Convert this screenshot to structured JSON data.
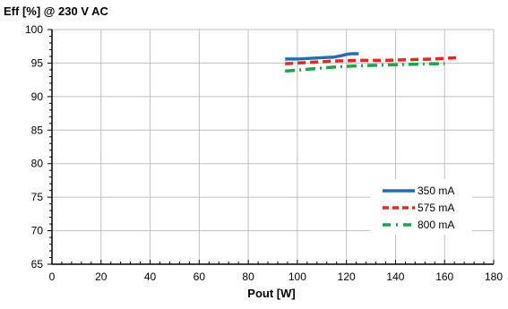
{
  "chart_data": {
    "type": "line",
    "title": "Eff [%]  @ 230 V AC",
    "xlabel": "Pout [W]",
    "ylabel": "",
    "xlim": [
      0,
      180
    ],
    "ylim": [
      65,
      100
    ],
    "xticks": [
      0,
      20,
      40,
      60,
      80,
      100,
      120,
      140,
      160,
      180
    ],
    "yticks": [
      65,
      70,
      75,
      80,
      85,
      90,
      95,
      100
    ],
    "grid": true,
    "legend_position": "bottom-right",
    "series": [
      {
        "name": "350 mA",
        "color": "#1F6FB5",
        "style": "solid",
        "x": [
          95,
          100,
          105,
          110,
          115,
          118,
          120,
          122,
          125
        ],
        "y": [
          95.6,
          95.6,
          95.7,
          95.8,
          95.9,
          96.1,
          96.3,
          96.4,
          96.4
        ]
      },
      {
        "name": "575 mA",
        "color": "#E8251F",
        "style": "dash",
        "x": [
          95,
          105,
          115,
          125,
          135,
          145,
          155,
          160,
          165
        ],
        "y": [
          94.9,
          95.1,
          95.3,
          95.4,
          95.4,
          95.5,
          95.6,
          95.7,
          95.8
        ]
      },
      {
        "name": "800 mA",
        "color": "#1AA54B",
        "style": "dashdot",
        "x": [
          95,
          105,
          115,
          125,
          135,
          145,
          155,
          160
        ],
        "y": [
          93.8,
          94.1,
          94.4,
          94.6,
          94.7,
          94.8,
          94.9,
          94.9
        ]
      }
    ]
  }
}
